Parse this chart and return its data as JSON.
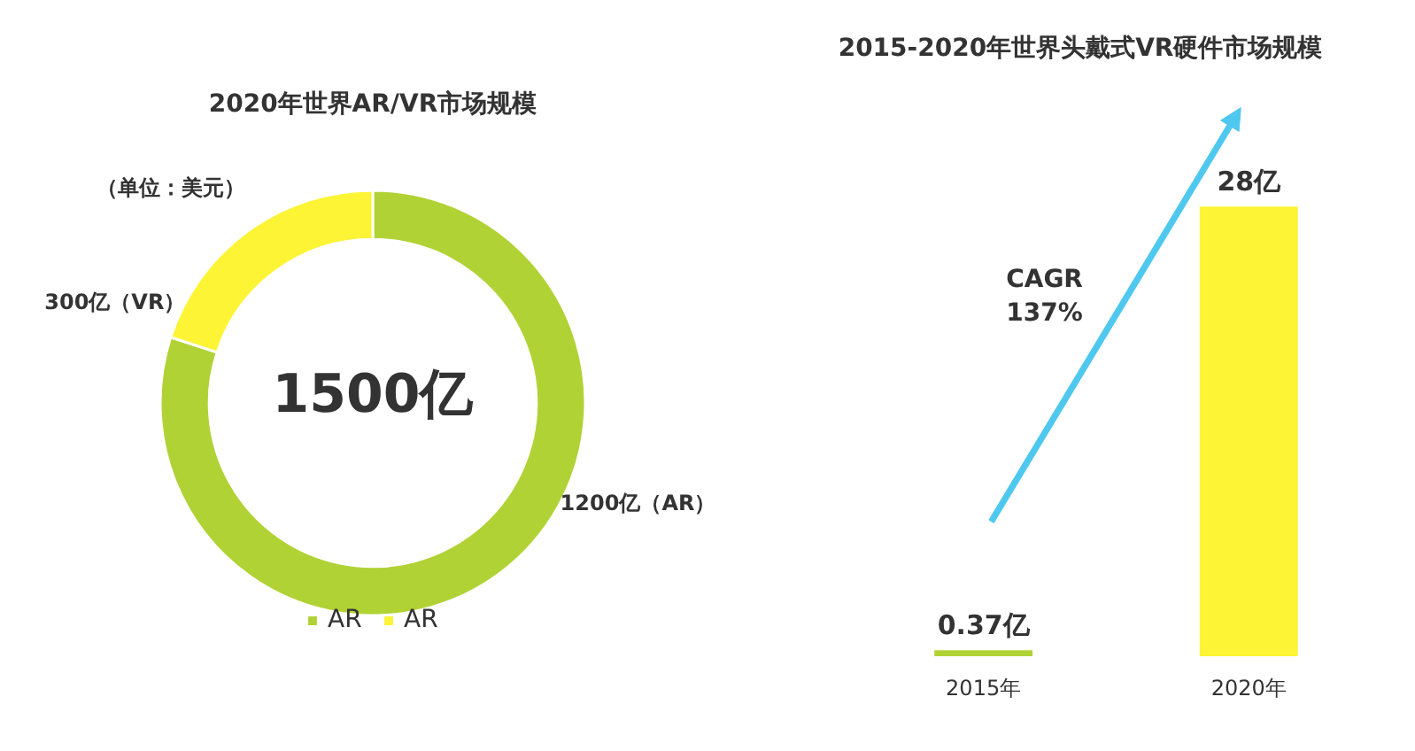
{
  "chart_data": [
    {
      "type": "donut",
      "title": "2020年世界AR/VR市场规模",
      "categories": [
        "AR",
        "AR"
      ],
      "values": [
        1200,
        300
      ],
      "colors": [
        "#b1d235",
        "#fcf434"
      ],
      "value_labels": [
        "1200亿（AR）",
        "300亿（VR）"
      ],
      "legend": "bottom",
      "annotations": [
        "（单位：美元）",
        "1500亿"
      ]
    },
    {
      "type": "bar",
      "title": "2015-2020年世界头戴式VR硬件市场规模",
      "categories": [
        "2015年",
        "2020年"
      ],
      "values": [
        0.37,
        28
      ],
      "colors": [
        "#b1d235",
        "#fcf434"
      ],
      "value_labels": [
        "0.37亿",
        "28亿"
      ],
      "tick_labels": "x",
      "annotations": [
        "CAGR\n137%"
      ]
    }
  ]
}
